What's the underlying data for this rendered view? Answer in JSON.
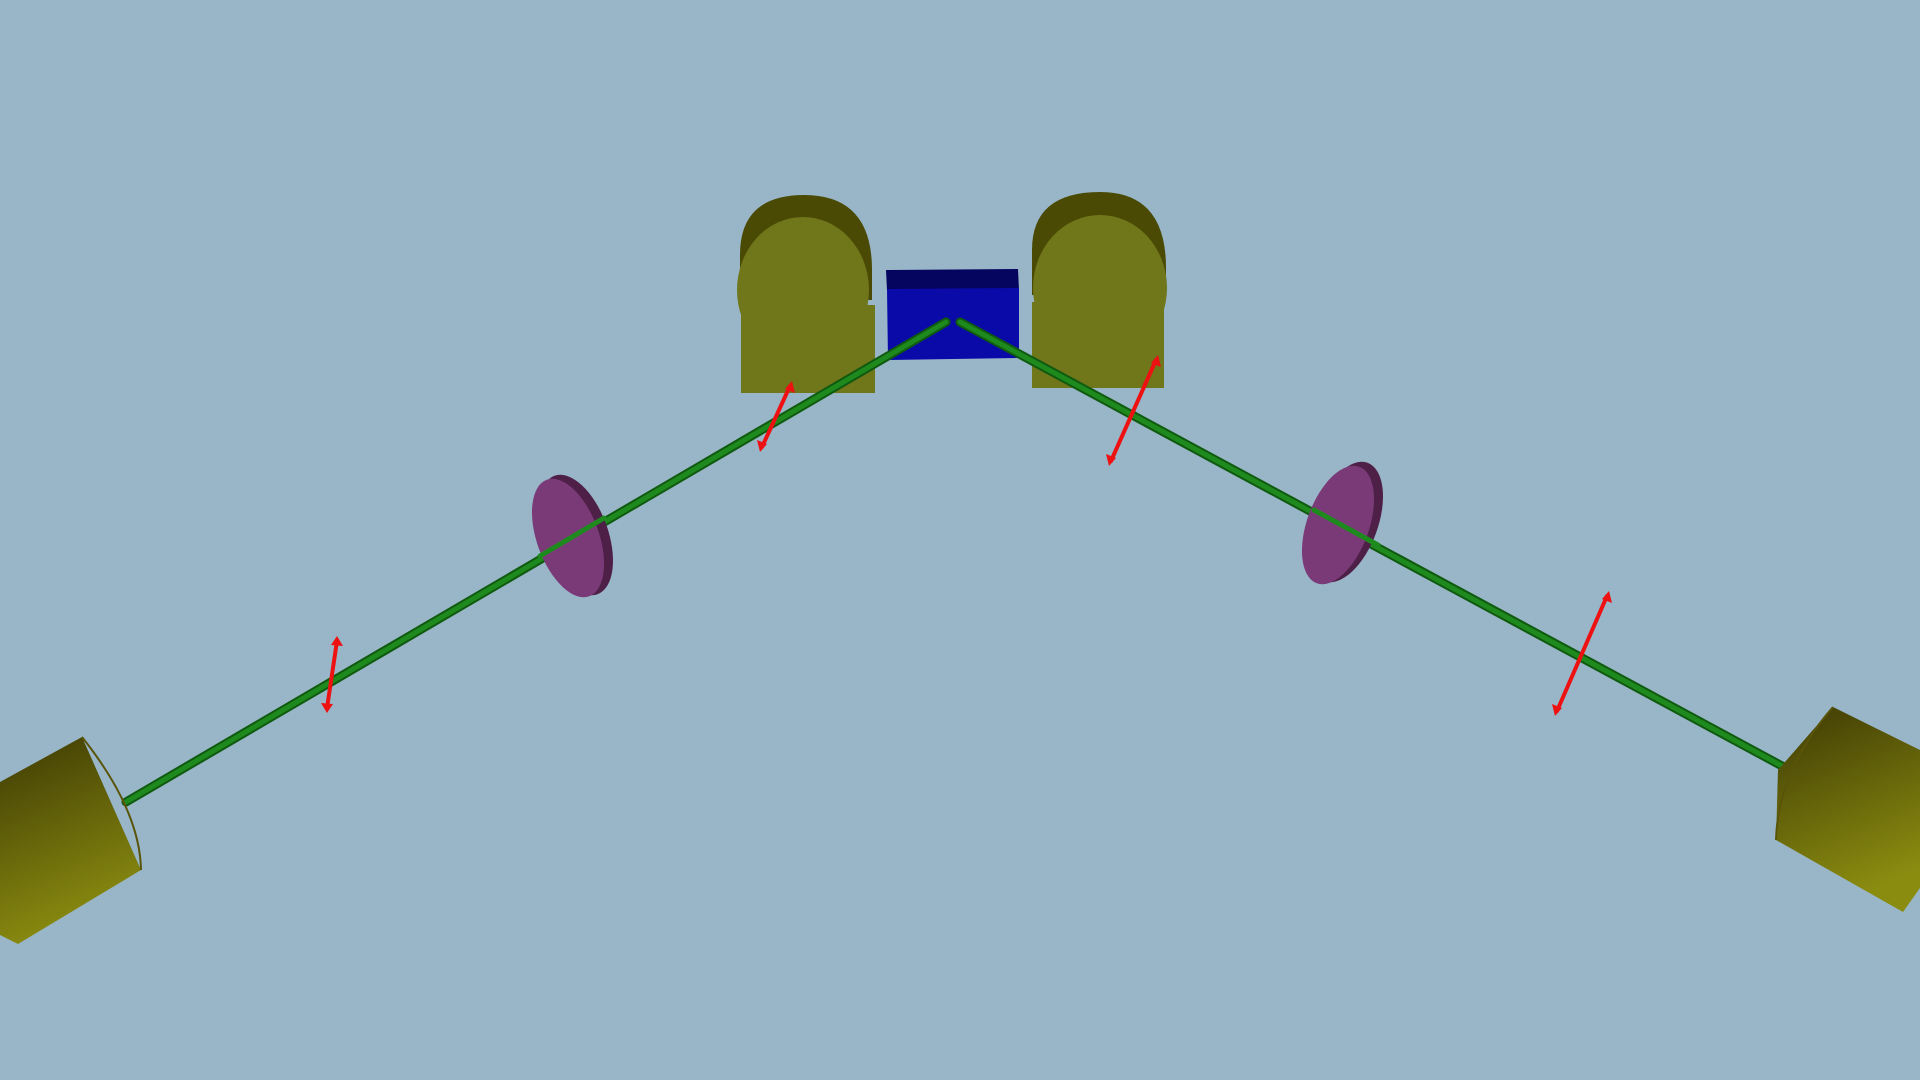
{
  "scene": {
    "background": "#98b6c8",
    "colors": {
      "beam": "#1e8a1e",
      "beam_dark": "#0f5a0f",
      "polarizer_arrow": "#ee1111",
      "lens": "#7a3a78",
      "lens_dark": "#4e2048",
      "detector": "#70761a",
      "detector_dark": "#4a4a05",
      "crystal": "#0a0aa8",
      "crystal_dark": "#050560"
    },
    "elements": [
      {
        "kind": "nonlinear-crystal",
        "count": 1
      },
      {
        "kind": "coupler",
        "count": 2
      },
      {
        "kind": "lens",
        "count": 2
      },
      {
        "kind": "polarization-arrow",
        "count": 4
      },
      {
        "kind": "detector",
        "count": 2
      },
      {
        "kind": "beam",
        "count": 2
      }
    ]
  }
}
